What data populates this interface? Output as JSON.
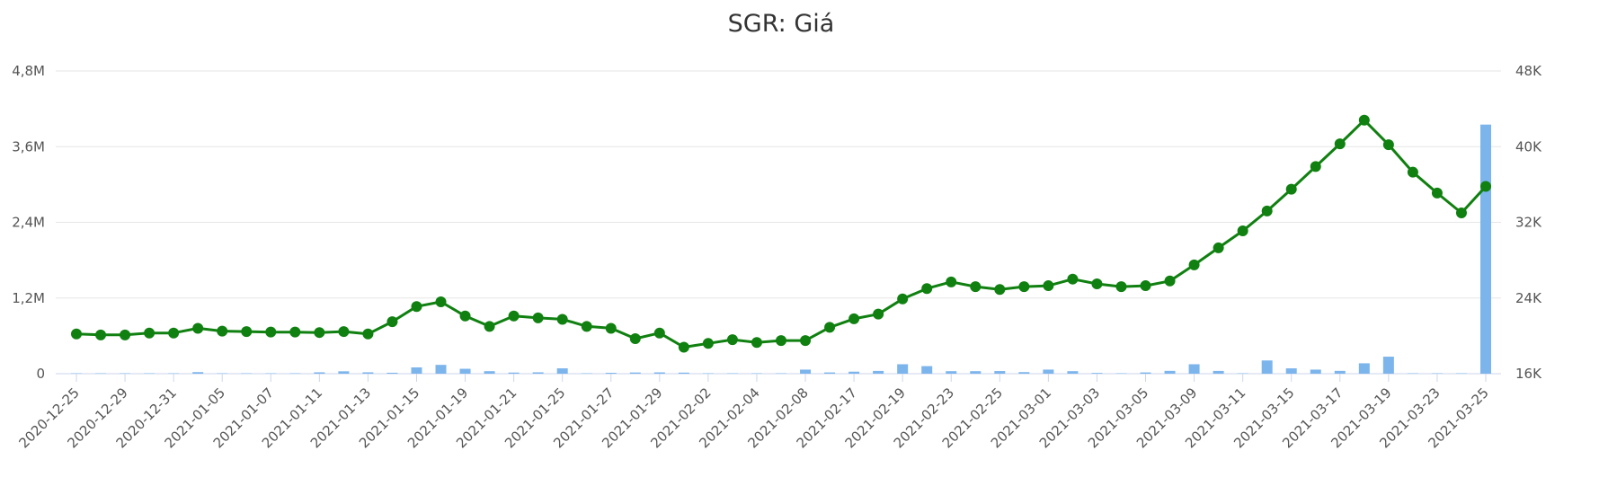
{
  "chart_data": {
    "type": "line",
    "title": "SGR: Giá",
    "grid": true,
    "legend": "none",
    "x": [
      "2020-12-25",
      "2020-12-28",
      "2020-12-29",
      "2020-12-30",
      "2020-12-31",
      "2021-01-04",
      "2021-01-05",
      "2021-01-06",
      "2021-01-07",
      "2021-01-08",
      "2021-01-11",
      "2021-01-12",
      "2021-01-13",
      "2021-01-14",
      "2021-01-15",
      "2021-01-18",
      "2021-01-19",
      "2021-01-20",
      "2021-01-21",
      "2021-01-22",
      "2021-01-25",
      "2021-01-26",
      "2021-01-27",
      "2021-01-28",
      "2021-01-29",
      "2021-02-01",
      "2021-02-02",
      "2021-02-03",
      "2021-02-04",
      "2021-02-05",
      "2021-02-08",
      "2021-02-09",
      "2021-02-17",
      "2021-02-18",
      "2021-02-19",
      "2021-02-22",
      "2021-02-23",
      "2021-02-24",
      "2021-02-25",
      "2021-02-26",
      "2021-03-01",
      "2021-03-02",
      "2021-03-03",
      "2021-03-04",
      "2021-03-05",
      "2021-03-08",
      "2021-03-09",
      "2021-03-10",
      "2021-03-11",
      "2021-03-12",
      "2021-03-15",
      "2021-03-16",
      "2021-03-17",
      "2021-03-18",
      "2021-03-19",
      "2021-03-22",
      "2021-03-23",
      "2021-03-24",
      "2021-03-25"
    ],
    "x_tick_labels": [
      "2020-12-25",
      "2020-12-29",
      "2020-12-31",
      "2021-01-05",
      "2021-01-07",
      "2021-01-11",
      "2021-01-13",
      "2021-01-15",
      "2021-01-19",
      "2021-01-21",
      "2021-01-25",
      "2021-01-27",
      "2021-01-29",
      "2021-02-02",
      "2021-02-04",
      "2021-02-08",
      "2021-02-17",
      "2021-02-19",
      "2021-02-23",
      "2021-02-25",
      "2021-03-01",
      "2021-03-03",
      "2021-03-05",
      "2021-03-09",
      "2021-03-11",
      "2021-03-15",
      "2021-03-17",
      "2021-03-19",
      "2021-03-23",
      "2021-03-25"
    ],
    "y_left": {
      "min": 0,
      "max": 4800000,
      "ticks": [
        0,
        1200000,
        2400000,
        3600000,
        4800000
      ],
      "tick_labels": [
        "0",
        "1,2M",
        "2,4M",
        "3,6M",
        "4,8M"
      ]
    },
    "y_right": {
      "min": 16000,
      "max": 48000,
      "ticks": [
        16000,
        24000,
        32000,
        40000,
        48000
      ],
      "tick_labels": [
        "16K",
        "24K",
        "32K",
        "40K",
        "48K"
      ]
    },
    "series": [
      {
        "type": "line",
        "axis": "right",
        "color": "#108010",
        "values": [
          20200,
          20100,
          20100,
          20300,
          20300,
          20800,
          20500,
          20450,
          20400,
          20400,
          20350,
          20450,
          20200,
          21500,
          23100,
          23600,
          22100,
          21000,
          22100,
          21900,
          21750,
          21000,
          20800,
          19700,
          20300,
          18800,
          19200,
          19600,
          19300,
          19500,
          19500,
          20900,
          21800,
          22300,
          23900,
          25000,
          25700,
          25200,
          24900,
          25200,
          25300,
          26000,
          25500,
          25200,
          25300,
          25800,
          27500,
          29300,
          31100,
          33200,
          35500,
          37900,
          40300,
          42800,
          40200,
          37300,
          35100,
          33000,
          35800
        ]
      },
      {
        "type": "bar",
        "axis": "left",
        "color": "#7cb5ec",
        "values": [
          3000,
          3000,
          3000,
          3000,
          3000,
          25000,
          3000,
          3000,
          3000,
          3000,
          22000,
          38000,
          22000,
          15000,
          100000,
          140000,
          78000,
          40000,
          18000,
          22000,
          85000,
          3000,
          14000,
          19000,
          21000,
          17000,
          3000,
          3000,
          3000,
          3000,
          65000,
          20000,
          32000,
          44000,
          150000,
          120000,
          40000,
          40000,
          42000,
          25000,
          65000,
          40000,
          12000,
          3000,
          20000,
          45000,
          150000,
          44000,
          3000,
          210000,
          85000,
          65000,
          45000,
          165000,
          270000,
          3000,
          3000,
          3000,
          3950000
        ]
      }
    ]
  }
}
